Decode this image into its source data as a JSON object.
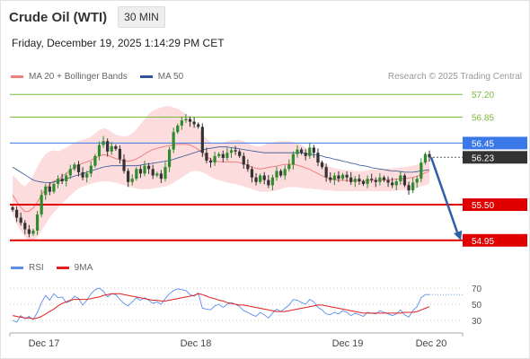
{
  "header": {
    "instrument": "Crude Oil (WTI)",
    "timeframe": "30 MIN",
    "datetime": "Friday, December 19, 2025 1:14:29 PM CET",
    "copyright": "Research © 2025 Trading Central"
  },
  "legend": {
    "ma20": "MA 20 + Bollinger Bands",
    "ma50": "MA 50",
    "ma20_color": "#f08080",
    "ma50_color": "#2f5597"
  },
  "rsi_legend": {
    "rsi": "RSI",
    "ma9": "9MA",
    "rsi_color": "#5b8def",
    "ma9_color": "#e02020"
  },
  "chart_data": [
    {
      "type": "line",
      "title": "Crude Oil (WTI)",
      "timeframe": "30 MIN",
      "ylim": [
        54.85,
        57.3
      ],
      "x_ticks": [
        "Dec 17",
        "Dec 18",
        "Dec 19",
        "Dec 20"
      ],
      "current_price": {
        "label": "56.23",
        "value": 56.23,
        "color": "#333333"
      },
      "levels": [
        {
          "label": "57.20",
          "value": 57.2,
          "color": "#7cba3b",
          "kind": "target"
        },
        {
          "label": "56.85",
          "value": 56.85,
          "color": "#7cba3b",
          "kind": "target"
        },
        {
          "label": "56.45",
          "value": 56.45,
          "color": "#3b78e7",
          "kind": "pivot"
        },
        {
          "label": "55.50",
          "value": 55.5,
          "color": "#e00000",
          "kind": "support"
        },
        {
          "label": "54.95",
          "value": 54.95,
          "color": "#e00000",
          "kind": "support"
        }
      ],
      "projection": {
        "from": 56.23,
        "to": 54.95,
        "color": "#2f5fa8"
      },
      "price_series": {
        "name": "Price",
        "close": [
          55.42,
          55.3,
          55.22,
          55.12,
          55.05,
          55.1,
          55.35,
          55.65,
          55.78,
          55.7,
          55.82,
          55.9,
          55.86,
          55.95,
          56.05,
          56.12,
          56.0,
          55.92,
          55.98,
          56.1,
          56.25,
          56.42,
          56.48,
          56.32,
          56.4,
          56.36,
          56.2,
          56.02,
          55.85,
          55.9,
          56.05,
          55.98,
          56.1,
          56.05,
          55.95,
          55.98,
          55.9,
          56.08,
          56.35,
          56.62,
          56.72,
          56.8,
          56.82,
          56.78,
          56.74,
          56.7,
          56.3,
          56.18,
          56.15,
          56.25,
          56.28,
          56.22,
          56.3,
          56.34,
          56.32,
          56.25,
          56.12,
          56.05,
          55.92,
          55.85,
          55.95,
          55.88,
          55.8,
          55.92,
          56.02,
          55.95,
          56.05,
          56.12,
          56.28,
          56.35,
          56.3,
          56.25,
          56.38,
          56.3,
          56.15,
          56.08,
          55.92,
          55.88,
          55.95,
          55.9,
          55.96,
          55.92,
          55.85,
          55.9,
          55.86,
          55.82,
          55.9,
          55.88,
          55.85,
          55.92,
          55.88,
          55.84,
          55.8,
          55.86,
          55.95,
          55.8,
          55.72,
          55.84,
          55.9,
          56.15,
          56.28,
          56.23
        ],
        "upper": [
          55.95,
          55.9,
          55.82,
          55.78,
          55.85,
          55.95,
          56.08,
          56.2,
          56.28,
          56.32,
          56.34,
          56.32,
          56.35,
          56.38,
          56.42,
          56.45,
          56.48,
          56.5,
          56.52,
          56.55,
          56.6,
          56.65,
          56.68,
          56.66,
          56.62,
          56.58,
          56.56,
          56.55,
          56.56,
          56.6,
          56.66,
          56.74,
          56.82,
          56.9,
          56.95,
          56.98,
          57.0,
          57.02,
          57.02,
          57.0,
          56.98,
          56.94,
          56.9,
          56.84,
          56.76,
          56.68,
          56.6,
          56.52,
          56.46,
          56.44,
          56.45,
          56.46,
          56.48,
          56.49,
          56.5,
          56.5,
          56.48,
          56.45,
          56.42,
          56.4,
          56.4,
          56.42,
          56.45,
          56.46,
          56.47,
          56.48,
          56.48,
          56.48,
          56.47,
          56.45,
          56.42,
          56.38,
          56.34,
          56.28,
          56.22,
          56.16,
          56.12,
          56.08,
          56.06,
          56.05,
          56.04,
          56.03,
          56.03,
          56.02,
          56.02,
          56.02,
          56.03,
          56.04,
          56.04,
          56.05,
          56.05,
          56.06,
          56.06,
          56.07,
          56.07,
          56.08,
          56.09,
          56.1,
          56.12,
          56.14,
          56.18,
          56.22
        ],
        "lower": [
          55.35,
          55.2,
          55.1,
          55.0,
          54.95,
          54.95,
          55.0,
          55.1,
          55.2,
          55.3,
          55.38,
          55.45,
          55.52,
          55.58,
          55.64,
          55.7,
          55.75,
          55.78,
          55.8,
          55.82,
          55.84,
          55.85,
          55.86,
          55.86,
          55.85,
          55.84,
          55.82,
          55.8,
          55.78,
          55.76,
          55.75,
          55.74,
          55.74,
          55.74,
          55.75,
          55.76,
          55.77,
          55.78,
          55.8,
          55.84,
          55.88,
          55.92,
          55.96,
          56.0,
          56.02,
          56.02,
          56.0,
          55.97,
          55.93,
          55.9,
          55.88,
          55.86,
          55.84,
          55.83,
          55.82,
          55.8,
          55.78,
          55.76,
          55.74,
          55.72,
          55.7,
          55.7,
          55.7,
          55.71,
          55.72,
          55.74,
          55.76,
          55.77,
          55.77,
          55.77,
          55.76,
          55.75,
          55.75,
          55.74,
          55.74,
          55.73,
          55.72,
          55.72,
          55.71,
          55.71,
          55.71,
          55.71,
          55.71,
          55.71,
          55.71,
          55.71,
          55.71,
          55.71,
          55.71,
          55.71,
          55.71,
          55.71,
          55.71,
          55.72,
          55.72,
          55.72,
          55.73,
          55.74,
          55.76,
          55.78,
          55.8,
          55.82
        ],
        "ma50": [
          56.08,
          56.04,
          56.0,
          55.96,
          55.92,
          55.88,
          55.86,
          55.85,
          55.84,
          55.84,
          55.85,
          55.86,
          55.88,
          55.9,
          55.92,
          55.94,
          55.96,
          55.98,
          56.0,
          56.02,
          56.04,
          56.06,
          56.08,
          56.09,
          56.1,
          56.1,
          56.1,
          56.1,
          56.1,
          56.1,
          56.1,
          56.11,
          56.12,
          56.13,
          56.14,
          56.15,
          56.16,
          56.17,
          56.18,
          56.2,
          56.22,
          56.24,
          56.26,
          56.28,
          56.3,
          56.32,
          56.34,
          56.36,
          56.37,
          56.38,
          56.39,
          56.39,
          56.39,
          56.38,
          56.37,
          56.36,
          56.35,
          56.34,
          56.33,
          56.32,
          56.31,
          56.3,
          56.3,
          56.3,
          56.3,
          56.3,
          56.3,
          56.3,
          56.3,
          56.3,
          56.3,
          56.29,
          56.28,
          56.27,
          56.26,
          56.25,
          56.23,
          56.22,
          56.2,
          56.19,
          56.17,
          56.16,
          56.14,
          56.13,
          56.11,
          56.1,
          56.09,
          56.07,
          56.06,
          56.05,
          56.04,
          56.03,
          56.02,
          56.02,
          56.01,
          56.0,
          56.0,
          56.0,
          56.01,
          56.02,
          56.03,
          56.04
        ]
      }
    },
    {
      "type": "line",
      "title": "RSI",
      "ylim": [
        20,
        80
      ],
      "y_ticks": [
        70,
        50,
        30
      ],
      "series": [
        {
          "name": "RSI",
          "values": [
            30,
            28,
            36,
            32,
            35,
            31,
            40,
            52,
            61,
            55,
            63,
            58,
            59,
            52,
            54,
            60,
            57,
            49,
            55,
            63,
            68,
            70,
            66,
            59,
            63,
            62,
            56,
            51,
            48,
            53,
            58,
            55,
            58,
            55,
            51,
            53,
            50,
            57,
            63,
            67,
            69,
            68,
            67,
            62,
            60,
            64,
            45,
            44,
            43,
            48,
            50,
            46,
            50,
            52,
            50,
            47,
            42,
            40,
            37,
            35,
            40,
            37,
            33,
            39,
            44,
            41,
            45,
            49,
            56,
            55,
            52,
            50,
            56,
            53,
            46,
            43,
            38,
            37,
            40,
            38,
            42,
            40,
            36,
            39,
            37,
            35,
            40,
            39,
            38,
            42,
            40,
            38,
            36,
            38,
            43,
            37,
            34,
            42,
            47,
            58,
            62,
            62
          ]
        },
        {
          "name": "9MA",
          "values": [
            36,
            35,
            34,
            33,
            33,
            32,
            33,
            35,
            38,
            41,
            44,
            48,
            51,
            53,
            55,
            56,
            56,
            56,
            56,
            57,
            58,
            59,
            61,
            62,
            63,
            63,
            63,
            62,
            61,
            60,
            59,
            58,
            57,
            56,
            55,
            55,
            54,
            54,
            55,
            56,
            57,
            58,
            59,
            60,
            61,
            63,
            62,
            60,
            58,
            57,
            55,
            54,
            52,
            51,
            50,
            49,
            49,
            48,
            47,
            46,
            45,
            44,
            43,
            42,
            41,
            41,
            41,
            42,
            43,
            44,
            45,
            46,
            47,
            48,
            49,
            49,
            48,
            47,
            46,
            45,
            44,
            43,
            42,
            41,
            40,
            39,
            39,
            39,
            39,
            39,
            39,
            39,
            39,
            39,
            39,
            40,
            40,
            40,
            41,
            43,
            45,
            47
          ]
        }
      ]
    }
  ]
}
